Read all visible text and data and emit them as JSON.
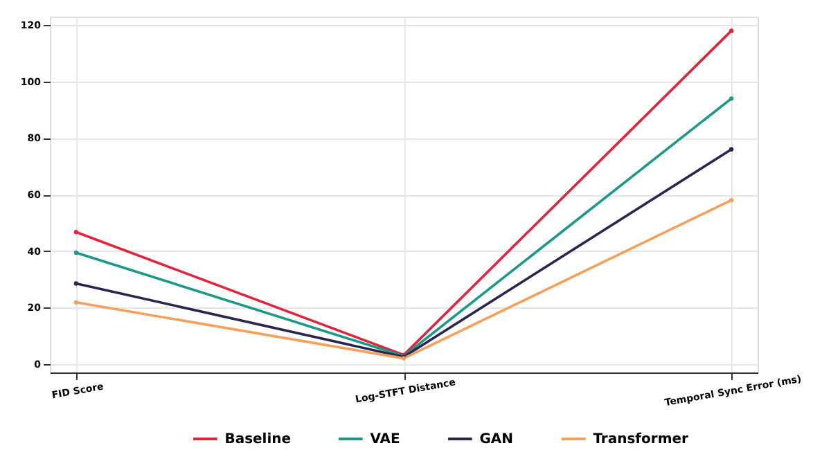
{
  "chart_data": {
    "type": "line",
    "categories": [
      "FID Score",
      "Log-STFT Distance",
      "Temporal Sync Error (ms)"
    ],
    "series": [
      {
        "name": "Baseline",
        "color": "#e0243c",
        "values": [
          46.7,
          3.2,
          118
        ]
      },
      {
        "name": "VAE",
        "color": "#1a9a86",
        "values": [
          39.4,
          2.8,
          94
        ]
      },
      {
        "name": "GAN",
        "color": "#2a2450",
        "values": [
          28.5,
          2.5,
          76
        ]
      },
      {
        "name": "Transformer",
        "color": "#f5a05a",
        "values": [
          21.8,
          2.0,
          58
        ]
      }
    ],
    "ylim": [
      -3,
      123
    ],
    "yticks": [
      0,
      20,
      40,
      60,
      80,
      100,
      120
    ],
    "grid": true,
    "legend": "bottom",
    "marker": "circle",
    "line_style": "solid"
  }
}
